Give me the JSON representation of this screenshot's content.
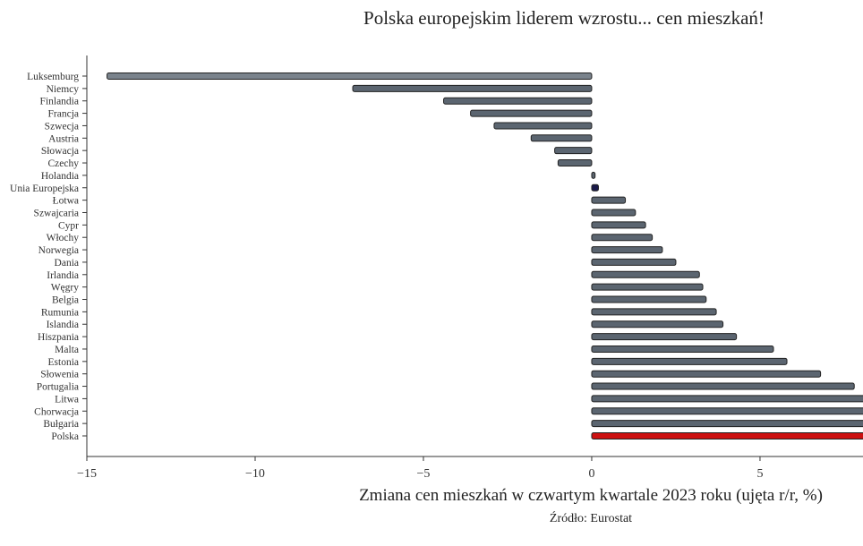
{
  "chart_data": {
    "type": "bar",
    "orientation": "horizontal",
    "title": "Polska europejskim liderem wzrostu... cen mieszkań!",
    "xlabel": "Zmiana cen mieszkań w czwartym kwartale 2023 roku (ujęta r/r, %)",
    "ylabel": "",
    "source": "Źródło: Eurostat",
    "xlim": [
      -15,
      8.06
    ],
    "xticks": [
      -15,
      -10,
      -5,
      0,
      5
    ],
    "grid": false,
    "categories": [
      "Luksemburg",
      "Niemcy",
      "Finlandia",
      "Francja",
      "Szwecja",
      "Austria",
      "Słowacja",
      "Czechy",
      "Holandia",
      "Unia Europejska",
      "Łotwa",
      "Szwajcaria",
      "Cypr",
      "Włochy",
      "Norwegia",
      "Dania",
      "Irlandia",
      "Węgry",
      "Belgia",
      "Rumunia",
      "Islandia",
      "Hiszpania",
      "Malta",
      "Estonia",
      "Słowenia",
      "Portugalia",
      "Litwa",
      "Chorwacja",
      "Bułgaria",
      "Polska"
    ],
    "values": [
      -14.4,
      -7.1,
      -4.4,
      -3.6,
      -2.9,
      -1.8,
      -1.1,
      -1.0,
      0.1,
      0.2,
      1.0,
      1.3,
      1.6,
      1.8,
      2.1,
      2.5,
      3.2,
      3.3,
      3.4,
      3.7,
      3.9,
      4.3,
      5.4,
      5.8,
      6.8,
      7.8,
      8.5,
      9.0,
      10.0,
      10.5
    ],
    "colors": {
      "default": "#5b6570",
      "eu": "#1a1a4a",
      "highlight": "#cc1111",
      "first": "#7a838c",
      "outline": "#222222"
    },
    "highlight_category": "Polska",
    "eu_category": "Unia Europejska"
  }
}
